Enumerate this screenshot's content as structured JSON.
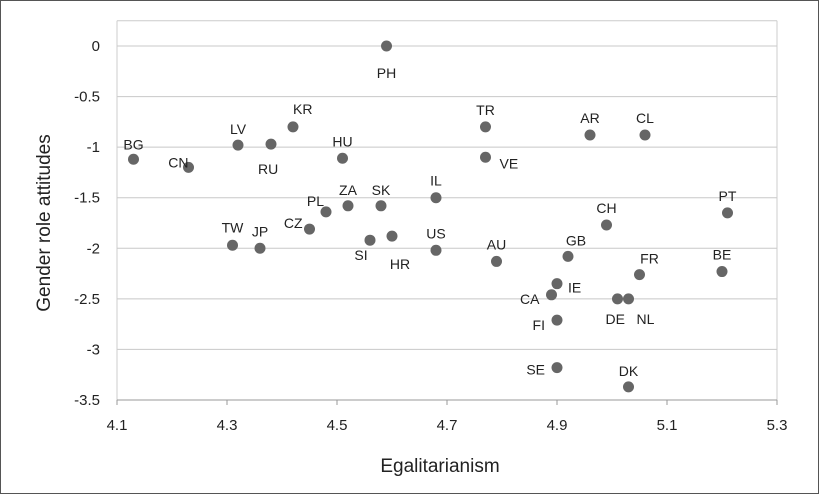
{
  "chart_data": {
    "type": "scatter",
    "title": "",
    "xlabel": "Egalitarianism",
    "ylabel": "Gender role attitudes",
    "xlim": [
      4.1,
      5.3
    ],
    "ylim": [
      -3.5,
      0.25
    ],
    "x_ticks": [
      4.1,
      4.3,
      4.5,
      4.7,
      4.9,
      5.1,
      5.3
    ],
    "x_tick_labels": [
      "4.1",
      "4.3",
      "4.5",
      "4.7",
      "4.9",
      "5.1",
      "5.3"
    ],
    "y_ticks": [
      0,
      -0.5,
      -1,
      -1.5,
      -2,
      -2.5,
      -3,
      -3.5
    ],
    "y_tick_labels": [
      "0",
      "-0.5",
      "-1",
      "-1.5",
      "-2",
      "-2.5",
      "-3",
      "-3.5"
    ],
    "grid": "horizontal",
    "marker_color": "#666666",
    "points": [
      {
        "label": "PH",
        "x": 4.59,
        "y": 0.0
      },
      {
        "label": "BG",
        "x": 4.13,
        "y": -1.12
      },
      {
        "label": "CN",
        "x": 4.23,
        "y": -1.2
      },
      {
        "label": "LV",
        "x": 4.32,
        "y": -0.98
      },
      {
        "label": "RU",
        "x": 4.38,
        "y": -0.97
      },
      {
        "label": "KR",
        "x": 4.42,
        "y": -0.8
      },
      {
        "label": "HU",
        "x": 4.51,
        "y": -1.11
      },
      {
        "label": "TR",
        "x": 4.77,
        "y": -0.8
      },
      {
        "label": "VE",
        "x": 4.77,
        "y": -1.1
      },
      {
        "label": "AR",
        "x": 4.96,
        "y": -0.88
      },
      {
        "label": "CL",
        "x": 5.06,
        "y": -0.88
      },
      {
        "label": "IL",
        "x": 4.68,
        "y": -1.5
      },
      {
        "label": "PL",
        "x": 4.48,
        "y": -1.64
      },
      {
        "label": "ZA",
        "x": 4.52,
        "y": -1.58
      },
      {
        "label": "SK",
        "x": 4.58,
        "y": -1.58
      },
      {
        "label": "PT",
        "x": 5.21,
        "y": -1.65
      },
      {
        "label": "CH",
        "x": 4.99,
        "y": -1.77
      },
      {
        "label": "CZ",
        "x": 4.45,
        "y": -1.81
      },
      {
        "label": "TW",
        "x": 4.31,
        "y": -1.97
      },
      {
        "label": "JP",
        "x": 4.36,
        "y": -2.0
      },
      {
        "label": "SI",
        "x": 4.56,
        "y": -1.92
      },
      {
        "label": "HR",
        "x": 4.6,
        "y": -1.88
      },
      {
        "label": "US",
        "x": 4.68,
        "y": -2.02
      },
      {
        "label": "AU",
        "x": 4.79,
        "y": -2.13
      },
      {
        "label": "GB",
        "x": 4.92,
        "y": -2.08
      },
      {
        "label": "BE",
        "x": 5.2,
        "y": -2.23
      },
      {
        "label": "FR",
        "x": 5.05,
        "y": -2.26
      },
      {
        "label": "IE",
        "x": 4.9,
        "y": -2.35
      },
      {
        "label": "CA",
        "x": 4.89,
        "y": -2.46
      },
      {
        "label": "DE",
        "x": 5.01,
        "y": -2.5
      },
      {
        "label": "NL",
        "x": 5.03,
        "y": -2.5
      },
      {
        "label": "FI",
        "x": 4.9,
        "y": -2.71
      },
      {
        "label": "SE",
        "x": 4.9,
        "y": -3.18
      },
      {
        "label": "DK",
        "x": 5.03,
        "y": -3.37
      }
    ]
  }
}
